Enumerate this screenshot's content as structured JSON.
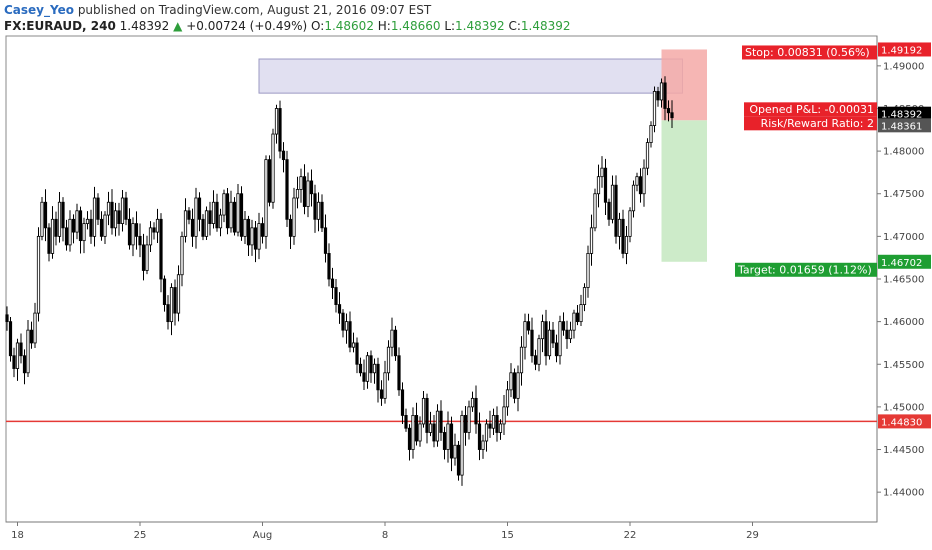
{
  "header": {
    "author": "Casey_Yeo",
    "published_text": "published on TradingView.com, August 21, 2016 09:07 EST",
    "symbol": "FX:EURAUD, 240",
    "last": "1.48392",
    "change_arrow": "▲",
    "change": "+0.00724 (+0.49%)",
    "o_label": "O:",
    "o_value": "1.48602",
    "h_label": "H:",
    "h_value": "1.48660",
    "l_label": "L:",
    "l_value": "1.48392",
    "c_label": "C:",
    "c_value": "1.48392"
  },
  "colors": {
    "up_candle": "#ffffff",
    "down_candle": "#000000",
    "support_line": "#e53935",
    "resistance_zone": "#c9c6e6",
    "stop_zone": "#f4a9a7",
    "target_zone": "#c8e9c3",
    "stop_label": "#e8222a",
    "target_label": "#1e9e32",
    "last_price": "#000000"
  },
  "chart_data": {
    "type": "candlestick",
    "xlabel": "",
    "ylabel": "",
    "ylim": [
      1.4365,
      1.4935
    ],
    "y_ticks": [
      "1.49000",
      "1.48500",
      "1.48000",
      "1.47500",
      "1.47000",
      "1.46500",
      "1.46000",
      "1.45500",
      "1.45000",
      "1.44500",
      "1.44000"
    ],
    "x_ticks": [
      {
        "label": "18",
        "bar": 3
      },
      {
        "label": "25",
        "bar": 38
      },
      {
        "label": "Aug",
        "bar": 73
      },
      {
        "label": "8",
        "bar": 108
      },
      {
        "label": "15",
        "bar": 143
      },
      {
        "label": "22",
        "bar": 178
      },
      {
        "label": "29",
        "bar": 213
      }
    ],
    "closes": [
      1.46,
      1.456,
      1.4545,
      1.4575,
      1.456,
      1.454,
      1.459,
      1.4575,
      1.461,
      1.47,
      1.474,
      1.471,
      1.468,
      1.472,
      1.47,
      1.474,
      1.471,
      1.469,
      1.472,
      1.4705,
      1.473,
      1.4695,
      1.4715,
      1.472,
      1.47,
      1.4745,
      1.472,
      1.47,
      1.4725,
      1.474,
      1.471,
      1.473,
      1.4715,
      1.4745,
      1.472,
      1.469,
      1.4715,
      1.47,
      1.469,
      1.466,
      1.469,
      1.471,
      1.4705,
      1.472,
      1.465,
      1.462,
      1.46,
      1.464,
      1.461,
      1.4655,
      1.47,
      1.473,
      1.472,
      1.47,
      1.4745,
      1.472,
      1.47,
      1.473,
      1.4715,
      1.474,
      1.471,
      1.4725,
      1.475,
      1.471,
      1.474,
      1.4705,
      1.475,
      1.47,
      1.472,
      1.469,
      1.471,
      1.4685,
      1.4715,
      1.47,
      1.479,
      1.474,
      1.482,
      1.485,
      1.48,
      1.479,
      1.472,
      1.47,
      1.4745,
      1.4755,
      1.477,
      1.4735,
      1.4765,
      1.475,
      1.472,
      1.474,
      1.471,
      1.468,
      1.465,
      1.464,
      1.462,
      1.461,
      1.459,
      1.46,
      1.457,
      1.4575,
      1.455,
      1.454,
      1.453,
      1.456,
      1.454,
      1.455,
      1.452,
      1.451,
      1.454,
      1.457,
      1.459,
      1.456,
      1.452,
      1.449,
      1.4475,
      1.445,
      1.449,
      1.446,
      1.448,
      1.451,
      1.447,
      1.448,
      1.446,
      1.4495,
      1.447,
      1.445,
      1.448,
      1.444,
      1.4455,
      1.442,
      1.449,
      1.447,
      1.45,
      1.451,
      1.448,
      1.445,
      1.446,
      1.448,
      1.4475,
      1.449,
      1.447,
      1.448,
      1.45,
      1.452,
      1.454,
      1.451,
      1.454,
      1.457,
      1.46,
      1.459,
      1.456,
      1.455,
      1.458,
      1.46,
      1.456,
      1.459,
      1.4575,
      1.456,
      1.46,
      1.459,
      1.458,
      1.459,
      1.461,
      1.46,
      1.462,
      1.464,
      1.468,
      1.471,
      1.475,
      1.477,
      1.478,
      1.474,
      1.472,
      1.476,
      1.47,
      1.472,
      1.468,
      1.47,
      1.473,
      1.476,
      1.477,
      1.475,
      1.478,
      1.481,
      1.483,
      1.487,
      1.486,
      1.488,
      1.485,
      1.4845,
      1.48392
    ],
    "support_level": 1.4483,
    "resistance_zone": {
      "top": 1.4908,
      "bottom": 1.4868,
      "bar_start": 72,
      "bar_end": 193
    },
    "position": {
      "entry": 1.48361,
      "stop": 1.49192,
      "target": 1.46702,
      "bar_start": 187,
      "bar_end": 200,
      "stop_text": "Stop: 0.00831 (0.56%)",
      "target_text": "Target: 0.01659 (1.12%)",
      "pl_text": "Opened P&L: -0.00031",
      "rr_text": "Risk/Reward Ratio: 2"
    },
    "price_labels": [
      {
        "text": "1.49192",
        "value": 1.49192,
        "kind": "stop"
      },
      {
        "text": "1.48392",
        "value": 1.48392,
        "kind": "last"
      },
      {
        "text": "1.48361",
        "value": 1.48361,
        "kind": "entry"
      },
      {
        "text": "1.46702",
        "value": 1.46702,
        "kind": "target"
      },
      {
        "text": "1.44830",
        "value": 1.4483,
        "kind": "support"
      }
    ]
  }
}
